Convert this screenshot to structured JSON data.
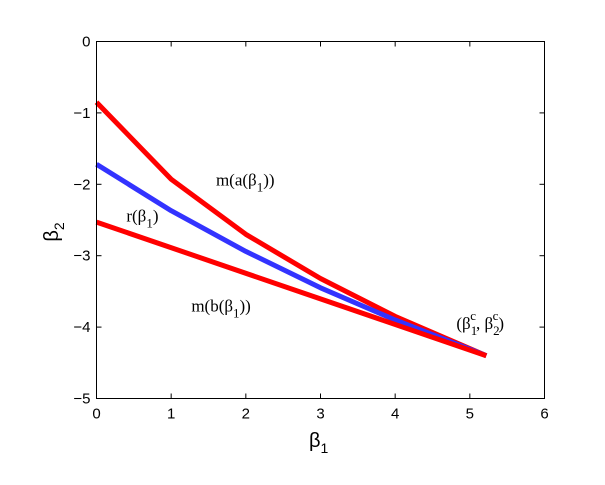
{
  "chart_data": {
    "type": "line",
    "xlabel": {
      "base": "β",
      "sub": "1"
    },
    "ylabel": {
      "base": "β",
      "sub": "2"
    },
    "xlim": [
      0,
      6
    ],
    "ylim": [
      -5,
      0
    ],
    "xticks": [
      0,
      1,
      2,
      3,
      4,
      5,
      6
    ],
    "yticks": [
      0,
      -1,
      -2,
      -3,
      -4,
      -5
    ],
    "xtick_labels": [
      "0",
      "1",
      "2",
      "3",
      "4",
      "5",
      "6"
    ],
    "ytick_labels": [
      "0",
      "−1",
      "−2",
      "−3",
      "−4",
      "−5"
    ],
    "grid": false,
    "legend": "none",
    "series": [
      {
        "color": "#ff0000",
        "x": [
          0,
          1,
          2,
          3,
          4,
          5.22
        ],
        "y": [
          -0.85,
          -1.93,
          -2.7,
          -3.32,
          -3.85,
          -4.4
        ]
      },
      {
        "color": "#3333ff",
        "x": [
          0,
          1,
          2,
          3,
          4,
          5.22
        ],
        "y": [
          -1.72,
          -2.37,
          -2.94,
          -3.45,
          -3.9,
          -4.4
        ]
      },
      {
        "color": "#ff0000",
        "x": [
          0,
          5.22
        ],
        "y": [
          -2.53,
          -4.4
        ]
      }
    ],
    "annotations": [
      {
        "parts": [
          "m(a(β",
          "1",
          "))"
        ],
        "kind": "sub",
        "x": 1.6,
        "y": -2.02
      },
      {
        "parts": [
          "r(β",
          "1",
          ")"
        ],
        "kind": "sub",
        "x": 0.4,
        "y": -2.52
      },
      {
        "parts": [
          "m(b(β",
          "1",
          "))"
        ],
        "kind": "sub",
        "x": 1.27,
        "y": -3.78
      },
      {
        "parts": [
          "(β",
          "1",
          "c",
          ", β",
          "2",
          "c",
          ")"
        ],
        "kind": "subsup",
        "x": 4.82,
        "y": -4.03
      }
    ]
  }
}
